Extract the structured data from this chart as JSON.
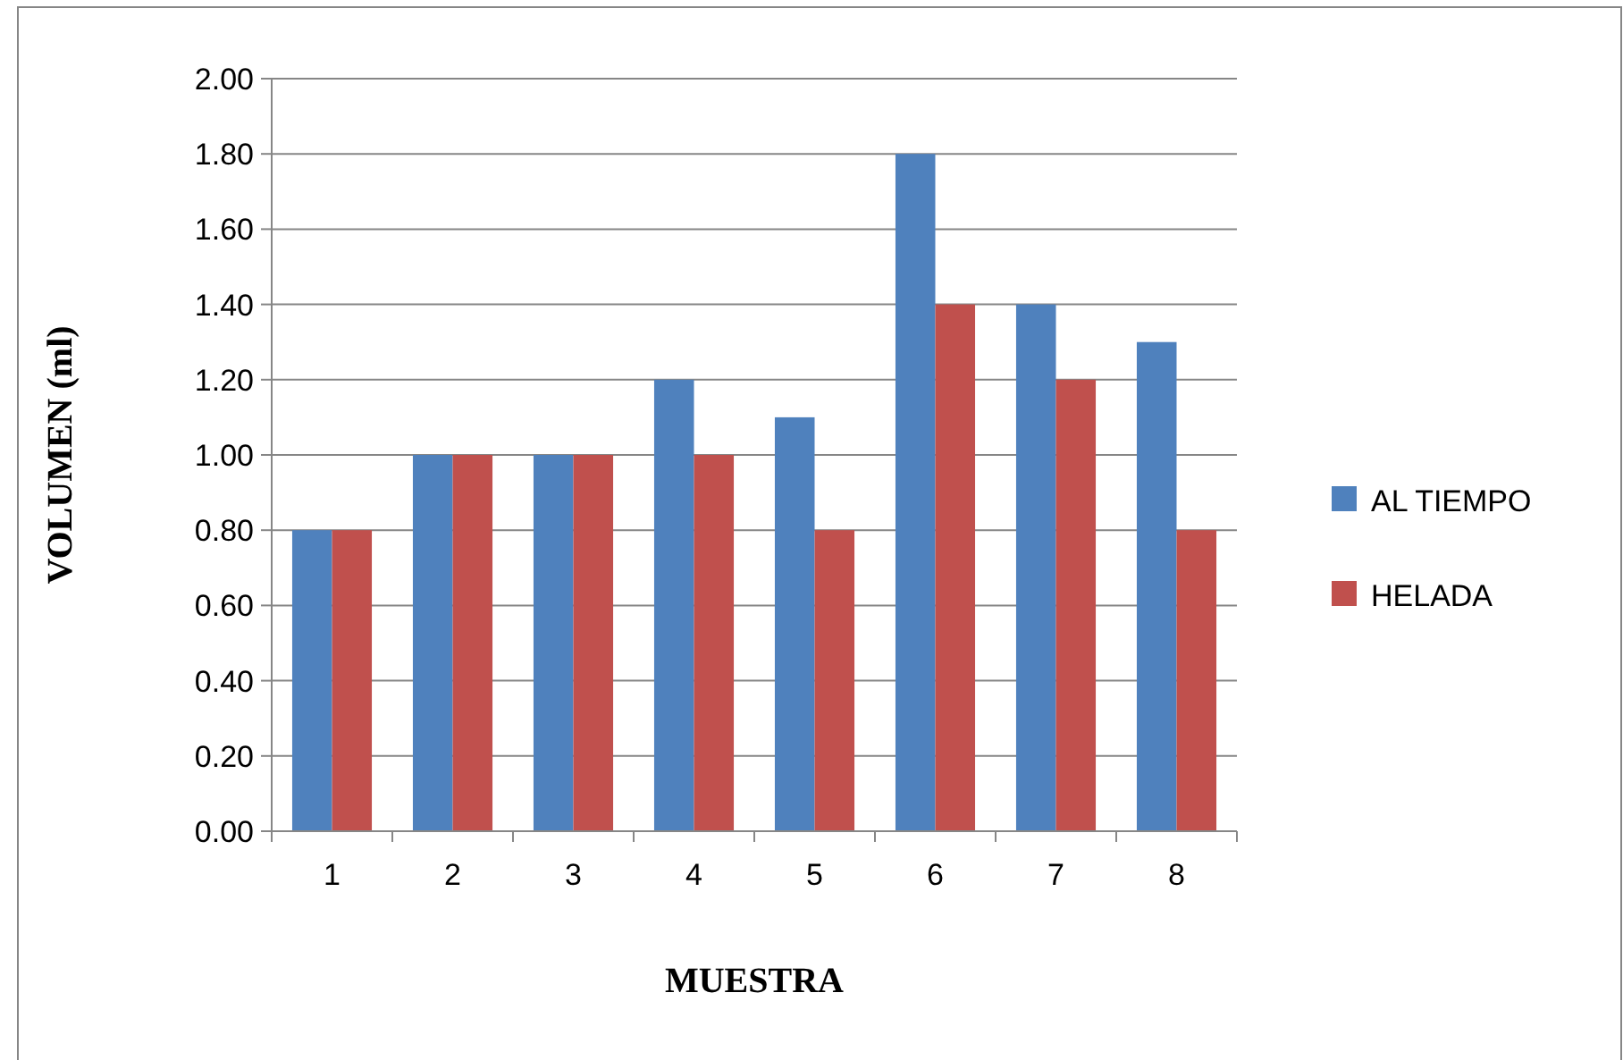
{
  "chart_data": {
    "type": "bar",
    "xlabel": "MUESTRA",
    "ylabel": "VOLUMEN (ml)",
    "categories": [
      "1",
      "2",
      "3",
      "4",
      "5",
      "6",
      "7",
      "8"
    ],
    "series": [
      {
        "name": "AL TIEMPO",
        "color": "#4f81bd",
        "values": [
          0.8,
          1.0,
          1.0,
          1.2,
          1.1,
          1.8,
          1.4,
          1.3
        ]
      },
      {
        "name": "HELADA",
        "color": "#c0504d",
        "values": [
          0.8,
          1.0,
          1.0,
          1.0,
          0.8,
          1.4,
          1.2,
          0.8
        ]
      }
    ],
    "ylim": [
      0,
      2
    ],
    "yticks": [
      {
        "value": 0,
        "label": "0.00"
      },
      {
        "value": 0.2,
        "label": "0.20"
      },
      {
        "value": 0.4,
        "label": "0.40"
      },
      {
        "value": 0.6,
        "label": "0.60"
      },
      {
        "value": 0.8,
        "label": "0.80"
      },
      {
        "value": 1,
        "label": "1.00"
      },
      {
        "value": 1.2,
        "label": "1.20"
      },
      {
        "value": 1.4,
        "label": "1.40"
      },
      {
        "value": 1.6,
        "label": "1.60"
      },
      {
        "value": 1.8,
        "label": "1.80"
      },
      {
        "value": 2,
        "label": "2.00"
      }
    ],
    "grid": "y",
    "legend": "right"
  }
}
